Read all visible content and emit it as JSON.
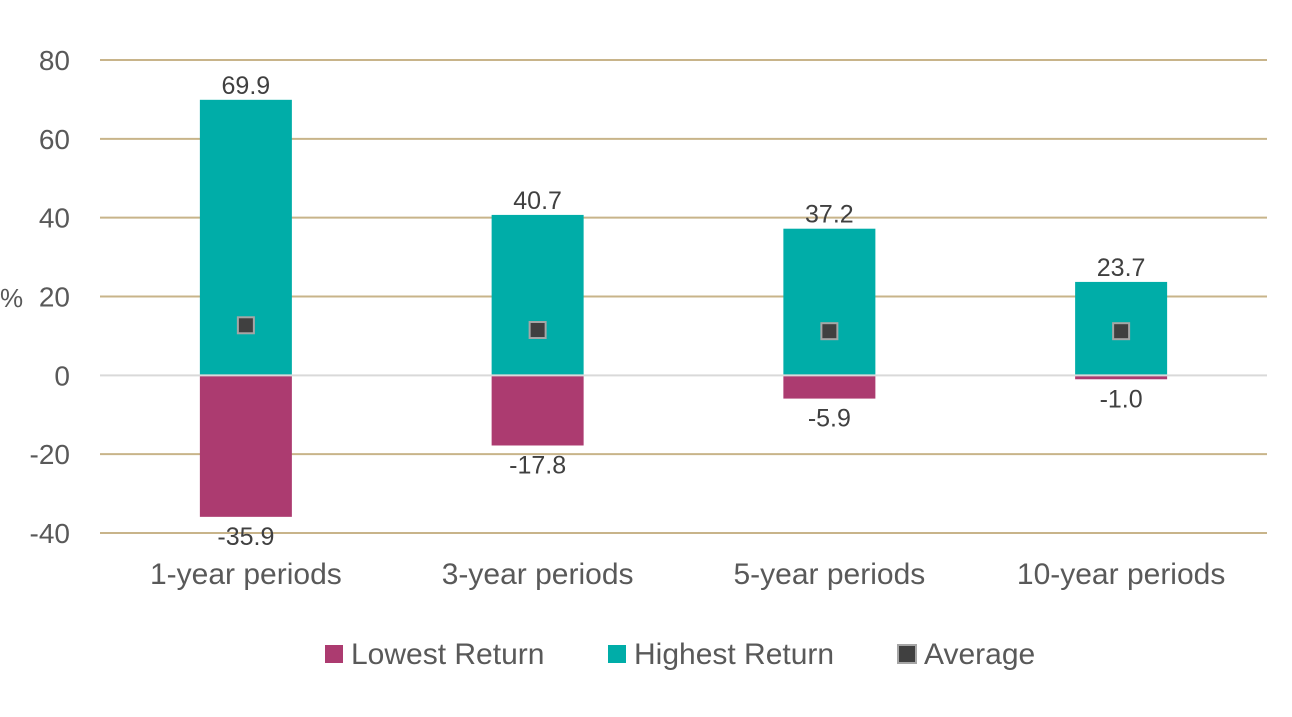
{
  "chart_data": {
    "type": "bar",
    "categories": [
      "1-year periods",
      "3-year periods",
      "5-year periods",
      "10-year periods"
    ],
    "series": [
      {
        "name": "Lowest Return",
        "values": [
          -35.9,
          -17.8,
          -5.9,
          -1.0
        ],
        "color": "#ac3b70"
      },
      {
        "name": "Highest Return",
        "values": [
          69.9,
          40.7,
          37.2,
          23.7
        ],
        "color": "#00ada8"
      },
      {
        "name": "Average",
        "values": [
          12.7,
          11.5,
          11.2,
          11.2
        ],
        "color": "#404040",
        "marker": "square"
      }
    ],
    "data_labels": {
      "Lowest Return": [
        "-35.9",
        "-17.8",
        "-5.9",
        "-1.0"
      ],
      "Highest Return": [
        "69.9",
        "40.7",
        "37.2",
        "23.7"
      ]
    },
    "ylabel": "%",
    "ylim": [
      -40,
      80
    ],
    "yticks": [
      80,
      60,
      40,
      20,
      0,
      -20,
      -40
    ],
    "ytick_labels": [
      "80",
      "60",
      "40",
      "20",
      "0",
      "-20",
      "-40"
    ],
    "grid": true,
    "grid_color": "#c8b48a",
    "legend_position": "bottom",
    "legend": [
      "Lowest Return",
      "Highest Return",
      "Average"
    ]
  }
}
